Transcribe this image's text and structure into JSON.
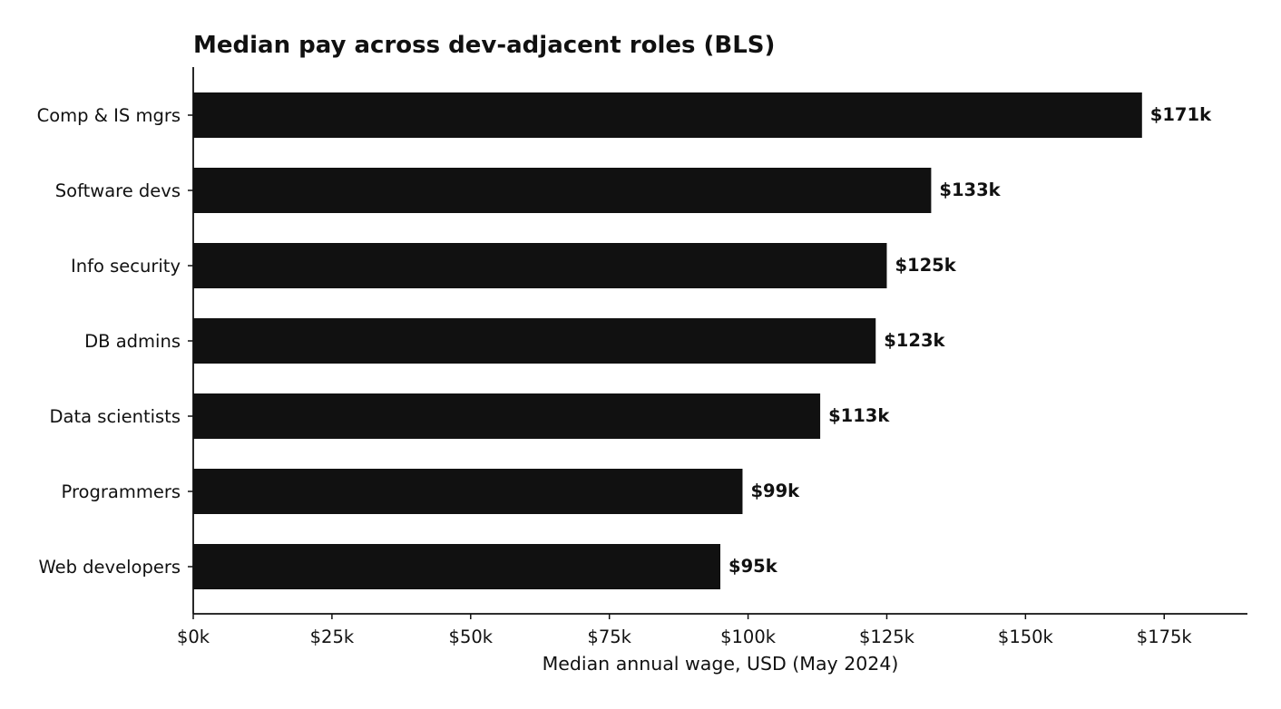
{
  "chart_data": {
    "type": "bar",
    "orientation": "horizontal",
    "title": "Median pay across dev-adjacent roles (BLS)",
    "xlabel": "Median annual wage, USD (May 2024)",
    "ylabel": "",
    "categories": [
      "Comp & IS mgrs",
      "Software devs",
      "Info security",
      "DB admins",
      "Data scientists",
      "Programmers",
      "Web developers"
    ],
    "values": [
      171000,
      133000,
      125000,
      123000,
      113000,
      99000,
      95000
    ],
    "data_labels": [
      "$171k",
      "$133k",
      "$125k",
      "$123k",
      "$113k",
      "$99k",
      "$95k"
    ],
    "x_ticks": [
      0,
      25000,
      50000,
      75000,
      100000,
      125000,
      150000,
      175000
    ],
    "x_tick_labels": [
      "$0k",
      "$25k",
      "$50k",
      "$75k",
      "$100k",
      "$125k",
      "$150k",
      "$175k"
    ],
    "xlim": [
      0,
      190000
    ],
    "grid": false,
    "legend": "none",
    "bar_color": "#111111"
  }
}
